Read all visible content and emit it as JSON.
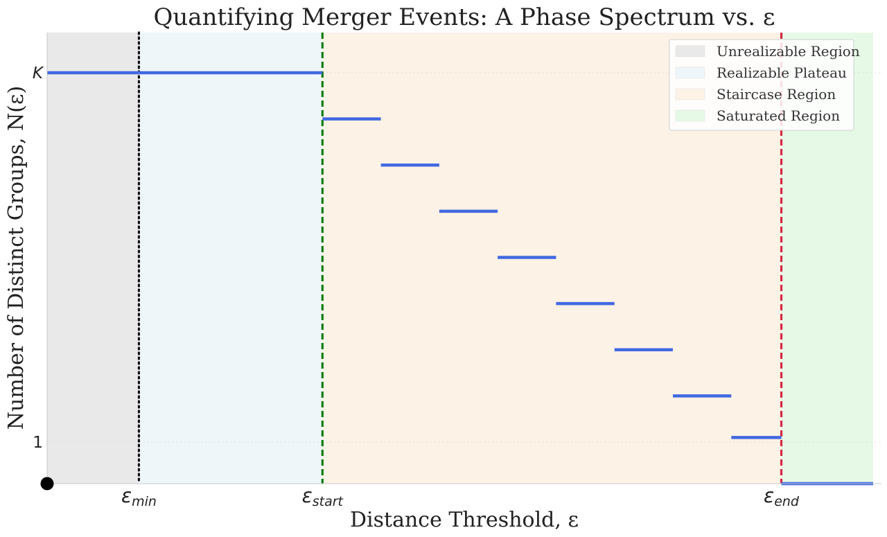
{
  "chart_data": {
    "type": "line",
    "title": "Quantifying Merger Events: A Phase Spectrum vs. ε",
    "xlabel": "Distance Threshold, ε",
    "ylabel": "Number of Distinct Groups, N(ε)",
    "xlim": [
      0,
      1
    ],
    "ylim": [
      0,
      10
    ],
    "y_ticks": [
      {
        "value": 9,
        "label": "K"
      },
      {
        "value": 1,
        "label": "1"
      }
    ],
    "x_ticks": [
      {
        "value": 0.11,
        "label": "εmin",
        "base": "ε",
        "sub": "min"
      },
      {
        "value": 0.33,
        "label": "εstart",
        "base": "ε",
        "sub": "start"
      },
      {
        "value": 0.88,
        "label": "εend",
        "base": "ε",
        "sub": "end"
      }
    ],
    "grid": "horizontal-at-ticks",
    "legend_position": "top-right",
    "regions": [
      {
        "name": "Unrealizable Region",
        "x0": 0.0,
        "x1": 0.11,
        "color": "#e9e9e9"
      },
      {
        "name": "Realizable Plateau",
        "x0": 0.11,
        "x1": 0.33,
        "color": "#eef6fa"
      },
      {
        "name": "Staircase Region",
        "x0": 0.33,
        "x1": 0.88,
        "color": "#fdf2e6"
      },
      {
        "name": "Saturated Region",
        "x0": 0.88,
        "x1": 0.99,
        "color": "#e6f9e6"
      }
    ],
    "vlines": [
      {
        "x": 0.11,
        "color": "#111111",
        "style": "dotted"
      },
      {
        "x": 0.33,
        "color": "#0a7d0a",
        "style": "dashed"
      },
      {
        "x": 0.88,
        "color": "#d42a44",
        "style": "dashed"
      }
    ],
    "steps": [
      {
        "x0": 0.0,
        "x1": 0.33,
        "y": 9
      },
      {
        "x0": 0.33,
        "x1": 0.4,
        "y": 8
      },
      {
        "x0": 0.4,
        "x1": 0.47,
        "y": 7
      },
      {
        "x0": 0.47,
        "x1": 0.54,
        "y": 6
      },
      {
        "x0": 0.54,
        "x1": 0.61,
        "y": 5
      },
      {
        "x0": 0.61,
        "x1": 0.68,
        "y": 4
      },
      {
        "x0": 0.68,
        "x1": 0.75,
        "y": 3
      },
      {
        "x0": 0.75,
        "x1": 0.82,
        "y": 2
      },
      {
        "x0": 0.82,
        "x1": 0.88,
        "y": 1.1
      },
      {
        "x0": 0.88,
        "x1": 0.99,
        "y": 0.1
      }
    ],
    "marker": {
      "x": 0.0,
      "y": 0.1,
      "color": "#000000"
    },
    "series_color": "#4169e1"
  }
}
